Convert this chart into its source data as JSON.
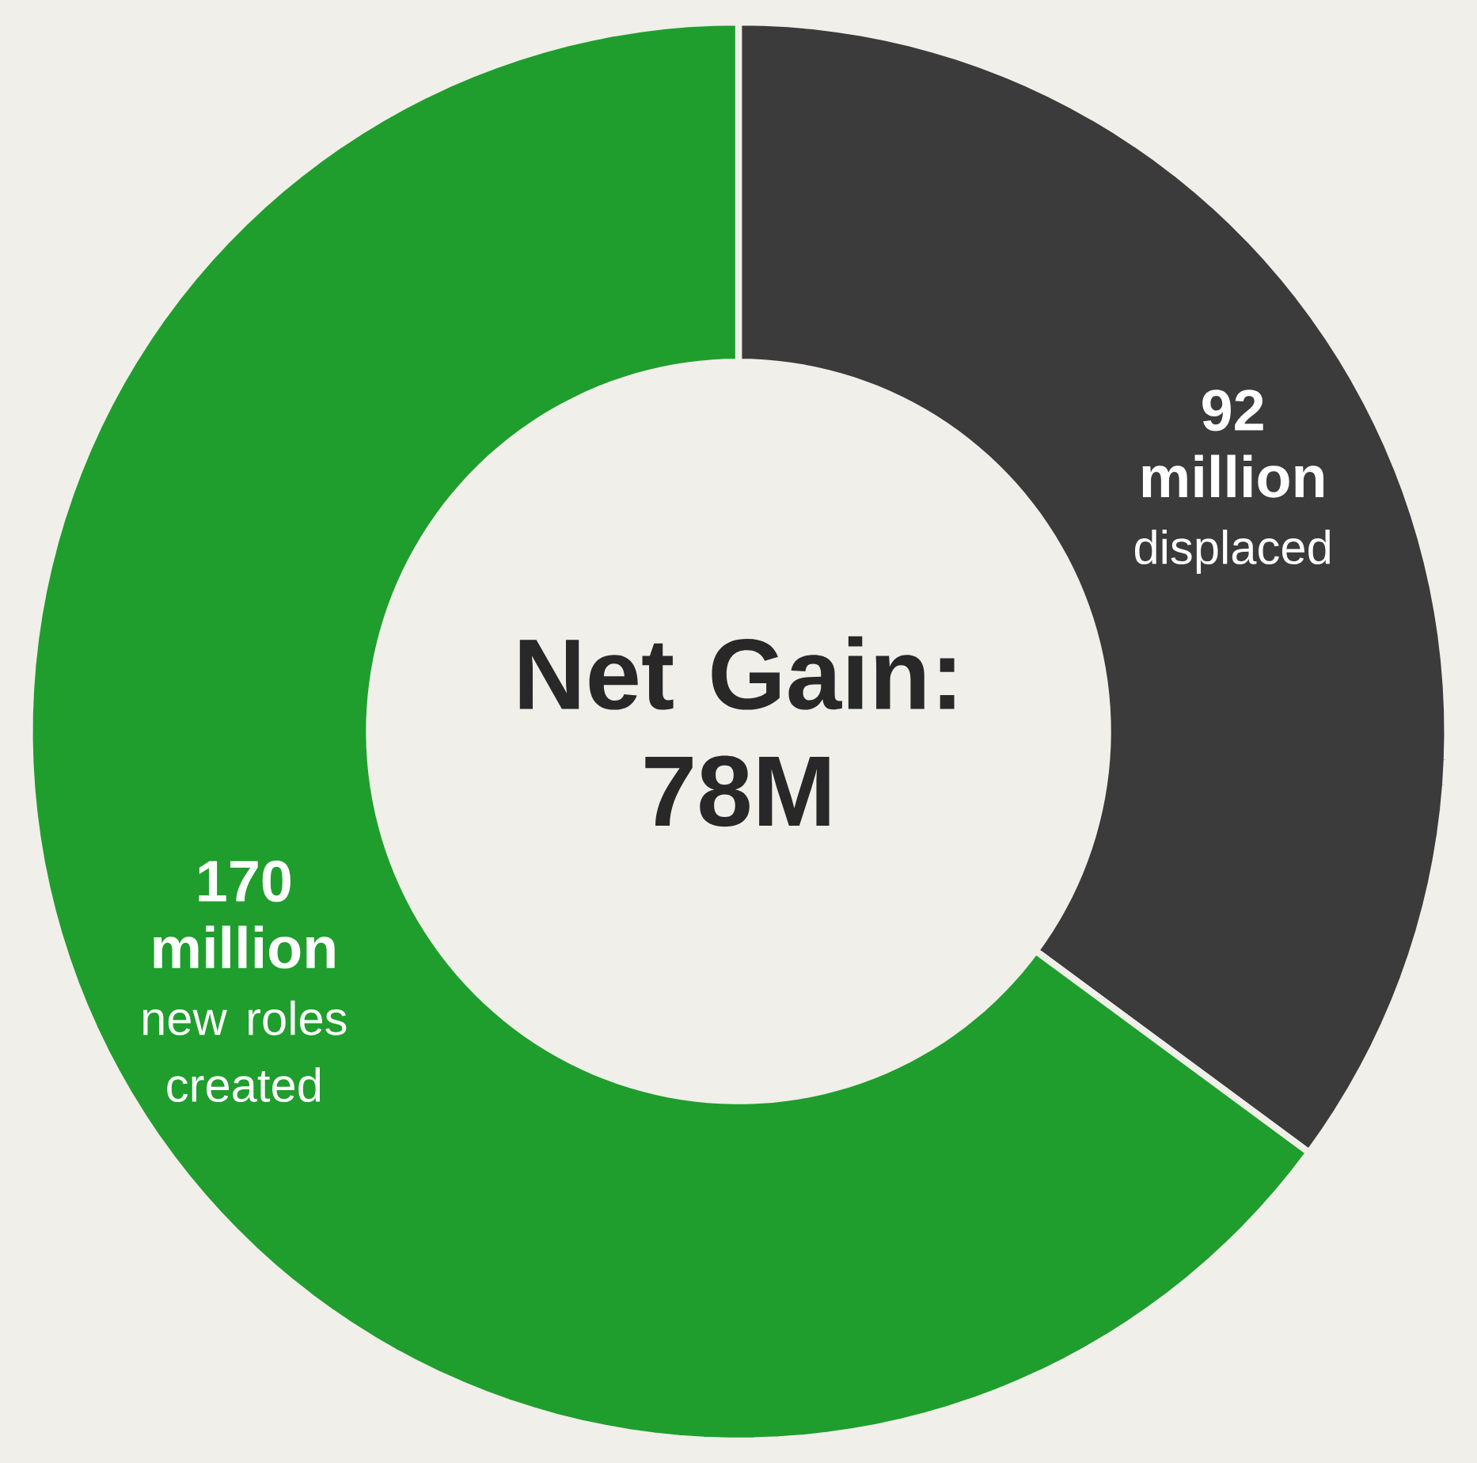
{
  "chart_data": {
    "type": "donut",
    "title": "Net Gain: 78M",
    "categories": [
      "displaced",
      "new roles created"
    ],
    "values": [
      92,
      170
    ],
    "value_labels": [
      "92 million",
      "170 million"
    ],
    "colors": [
      "#3b3b3b",
      "#1f9e2d"
    ]
  }
}
